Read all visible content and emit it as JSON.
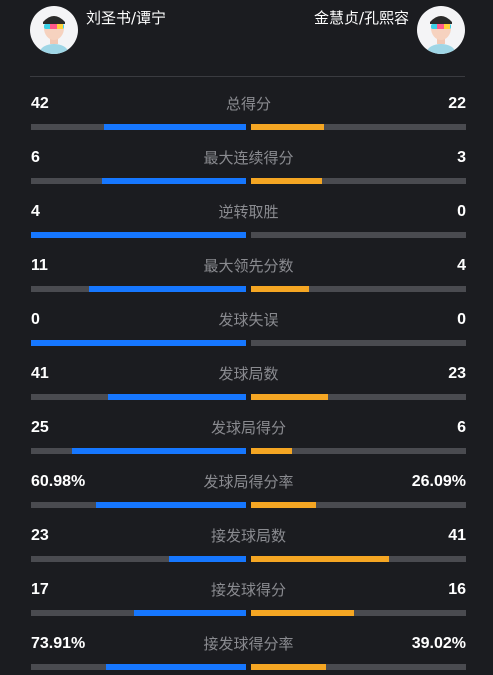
{
  "players": {
    "left": {
      "name": "刘圣书/谭宁",
      "avatar_icon": "player-avatar-icon"
    },
    "right": {
      "name": "金慧贞/孔熙容",
      "avatar_icon": "player-avatar-icon"
    }
  },
  "colors": {
    "left": "#1677ff",
    "right": "#f5a623",
    "track": "#4a4b50"
  },
  "stats": [
    {
      "label": "总得分",
      "left": "42",
      "right": "22",
      "left_frac": 0.66,
      "right_frac": 0.34
    },
    {
      "label": "最大连续得分",
      "left": "6",
      "right": "3",
      "left_frac": 0.67,
      "right_frac": 0.33
    },
    {
      "label": "逆转取胜",
      "left": "4",
      "right": "0",
      "left_frac": 1.0,
      "right_frac": 0.0
    },
    {
      "label": "最大领先分数",
      "left": "11",
      "right": "4",
      "left_frac": 0.73,
      "right_frac": 0.27
    },
    {
      "label": "发球失误",
      "left": "0",
      "right": "0",
      "left_frac": 1.0,
      "right_frac": 0.0
    },
    {
      "label": "发球局数",
      "left": "41",
      "right": "23",
      "left_frac": 0.64,
      "right_frac": 0.36
    },
    {
      "label": "发球局得分",
      "left": "25",
      "right": "6",
      "left_frac": 0.81,
      "right_frac": 0.19
    },
    {
      "label": "发球局得分率",
      "left": "60.98%",
      "right": "26.09%",
      "left_frac": 0.7,
      "right_frac": 0.3
    },
    {
      "label": "接发球局数",
      "left": "23",
      "right": "41",
      "left_frac": 0.36,
      "right_frac": 0.64
    },
    {
      "label": "接发球得分",
      "left": "17",
      "right": "16",
      "left_frac": 0.52,
      "right_frac": 0.48
    },
    {
      "label": "接发球得分率",
      "left": "73.91%",
      "right": "39.02%",
      "left_frac": 0.65,
      "right_frac": 0.35
    }
  ]
}
